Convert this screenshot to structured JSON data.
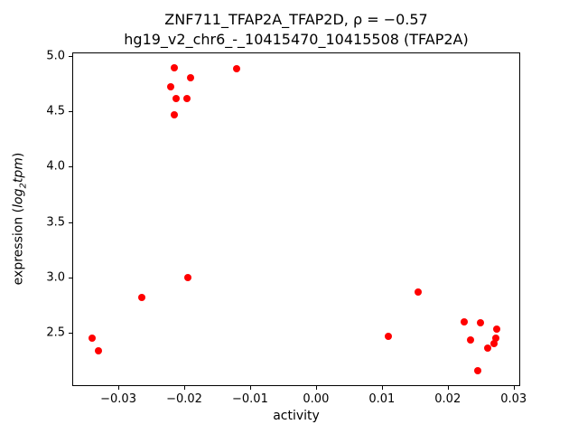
{
  "figure": {
    "title_line1": "ZNF711_TFAP2A_TFAP2D, ρ = −0.57",
    "title_line2": "hg19_v2_chr6_-_10415470_10415508 (TFAP2A)",
    "xlabel": "activity",
    "ylabel": {
      "prefix": "expression (",
      "log_text": "log",
      "sub": "2",
      "suffix": "tpm",
      "close": ")"
    }
  },
  "chart_data": {
    "type": "scatter",
    "title": "ZNF711_TFAP2A_TFAP2D, rho = -0.57 | hg19_v2_chr6_-_10415470_10415508 (TFAP2A)",
    "xlabel": "activity",
    "ylabel": "expression (log2 tpm)",
    "marker_color": "#ff0000",
    "grid": false,
    "xlim": [
      -0.037,
      0.031
    ],
    "ylim": [
      2.02,
      5.03
    ],
    "x_ticks": [
      -0.03,
      -0.02,
      -0.01,
      0.0,
      0.01,
      0.02,
      0.03
    ],
    "x_tick_labels": [
      "−0.03",
      "−0.02",
      "−0.01",
      "0.00",
      "0.01",
      "0.02",
      "0.03"
    ],
    "y_ticks": [
      2.5,
      3.0,
      3.5,
      4.0,
      4.5,
      5.0
    ],
    "y_tick_labels": [
      "2.5",
      "3.0",
      "3.5",
      "4.0",
      "4.5",
      "5.0"
    ],
    "points": [
      [
        -0.0215,
        4.89
      ],
      [
        -0.012,
        4.88
      ],
      [
        -0.019,
        4.8
      ],
      [
        -0.022,
        4.72
      ],
      [
        -0.0213,
        4.61
      ],
      [
        -0.0196,
        4.61
      ],
      [
        -0.0215,
        4.47
      ],
      [
        -0.0265,
        2.82
      ],
      [
        -0.0195,
        3.0
      ],
      [
        -0.034,
        2.45
      ],
      [
        -0.033,
        2.34
      ],
      [
        0.011,
        2.47
      ],
      [
        0.0155,
        2.87
      ],
      [
        0.0225,
        2.6
      ],
      [
        0.0235,
        2.44
      ],
      [
        0.025,
        2.59
      ],
      [
        0.0245,
        2.16
      ],
      [
        0.026,
        2.36
      ],
      [
        0.027,
        2.4
      ],
      [
        0.0273,
        2.45
      ],
      [
        0.0275,
        2.53
      ]
    ]
  }
}
